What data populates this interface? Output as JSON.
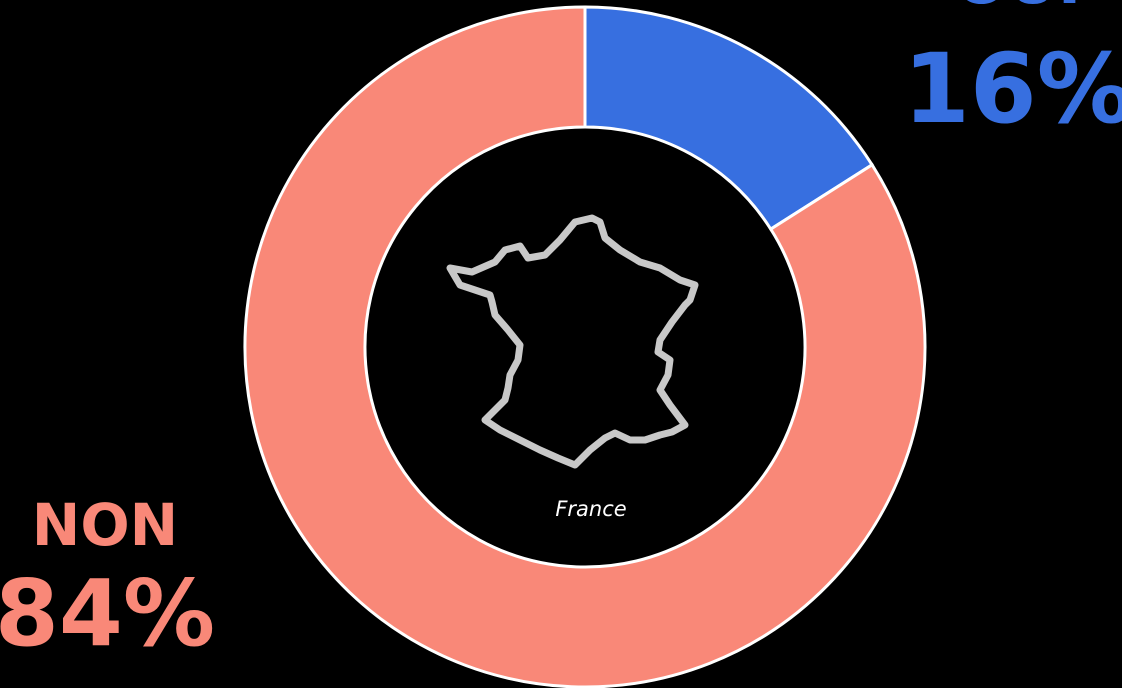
{
  "chart_data": {
    "type": "donut",
    "categories": [
      "OUI",
      "NON"
    ],
    "values": [
      16,
      84
    ],
    "value_labels": [
      "16%",
      "84%"
    ],
    "colors": [
      "#376fe0",
      "#f98878"
    ],
    "center_label": "France"
  }
}
